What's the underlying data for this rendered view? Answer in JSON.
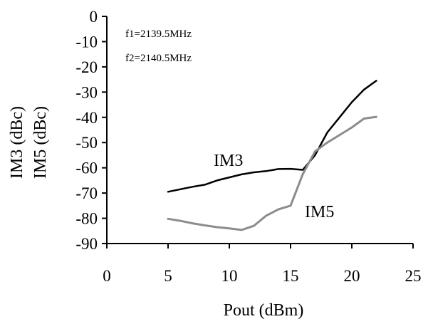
{
  "chart_data": {
    "type": "line",
    "title": "",
    "xlabel": "Pout (dBm)",
    "ylabel_lines": [
      "IM3 (dBc)",
      "IM5 (dBc)"
    ],
    "xlim": [
      0,
      25
    ],
    "ylim": [
      -90,
      0
    ],
    "xticks": [
      0,
      5,
      10,
      15,
      20,
      25
    ],
    "yticks": [
      0,
      -10,
      -20,
      -30,
      -40,
      -50,
      -60,
      -70,
      -80,
      -90
    ],
    "grid": false,
    "legend": "none",
    "annotations": [
      "f1=2139.5MHz",
      "f2=2140.5MHz"
    ],
    "series": [
      {
        "name": "IM3",
        "color": "#000000",
        "x": [
          5,
          6,
          7,
          8,
          9,
          10,
          11,
          12,
          13,
          14,
          15,
          16,
          17,
          18,
          19,
          20,
          21,
          22
        ],
        "y": [
          -69.5,
          -68.5,
          -67.5,
          -66.7,
          -65,
          -63.8,
          -62.6,
          -61.8,
          -61.3,
          -60.5,
          -60.4,
          -60.8,
          -55,
          -46,
          -40,
          -34,
          -29,
          -25.5
        ]
      },
      {
        "name": "IM5",
        "color": "#8c8c8c",
        "x": [
          5,
          6,
          7,
          8,
          9,
          10,
          11,
          12,
          13,
          14,
          15,
          16,
          17,
          18,
          19,
          20,
          21,
          22
        ],
        "y": [
          -80.2,
          -81,
          -82,
          -82.8,
          -83.5,
          -84,
          -84.6,
          -83,
          -79,
          -76.5,
          -75,
          -62.5,
          -53.5,
          -50,
          -47,
          -44,
          -40.5,
          -39.8
        ]
      }
    ]
  }
}
